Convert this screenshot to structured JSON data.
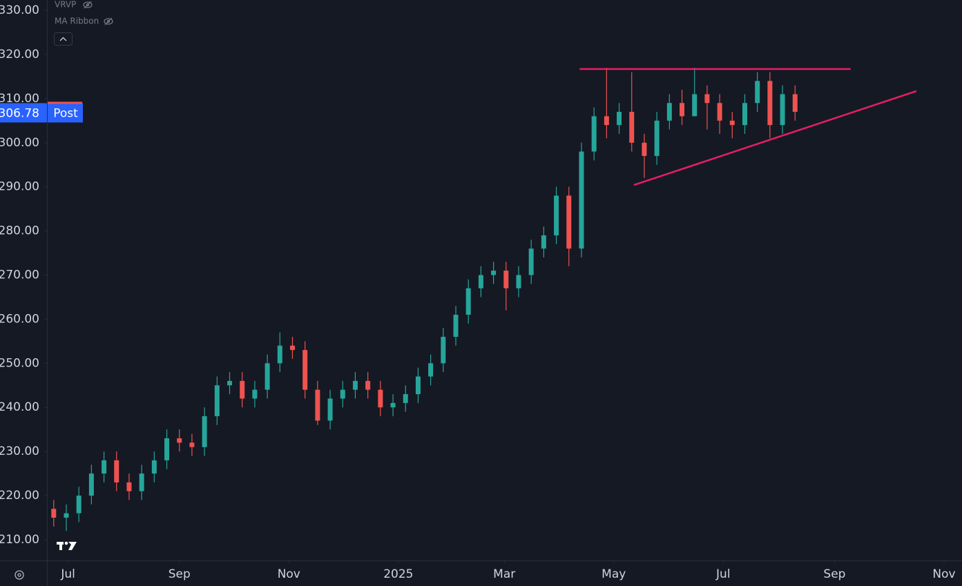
{
  "chart_data": {
    "type": "candlestick",
    "indicators": [
      "VRVP",
      "MA Ribbon"
    ],
    "x": [
      -8,
      -1,
      6,
      13,
      20,
      27,
      34,
      41,
      48,
      55,
      62,
      69,
      76,
      83,
      90,
      97,
      104,
      111,
      118,
      125,
      132,
      139,
      146,
      153,
      160,
      167,
      174,
      181,
      188,
      195,
      202,
      209,
      216,
      223,
      230,
      237,
      244,
      251,
      258,
      265,
      272,
      279,
      286,
      293,
      300,
      307,
      314,
      321,
      328,
      335,
      342,
      349,
      356,
      363,
      370,
      377,
      384,
      391,
      398,
      405
    ],
    "open": [
      217,
      215,
      216,
      220,
      225,
      228,
      223,
      221,
      225,
      228,
      233,
      232,
      231,
      238,
      245,
      246,
      242,
      244,
      250,
      254,
      253,
      244,
      237,
      242,
      244,
      246,
      244,
      240,
      241,
      243,
      247,
      250,
      256,
      261,
      267,
      270,
      271,
      267,
      270,
      276,
      279,
      288,
      276,
      298,
      306,
      304,
      307,
      300,
      297,
      305,
      309,
      306,
      311,
      309,
      305,
      304,
      309,
      314,
      304,
      311
    ],
    "high": [
      219,
      218,
      222,
      227,
      230,
      230,
      225,
      227,
      230,
      235,
      235,
      234,
      240,
      247,
      248,
      248,
      246,
      252,
      257,
      256,
      255,
      246,
      244,
      246,
      248,
      248,
      246,
      243,
      245,
      249,
      252,
      258,
      263,
      269,
      272,
      273,
      273,
      272,
      278,
      281,
      290,
      290,
      300,
      308,
      317,
      309,
      316,
      302,
      307,
      311,
      312,
      317,
      313,
      311,
      307,
      311,
      316,
      316,
      313,
      313
    ],
    "low": [
      213,
      212,
      214,
      218,
      223,
      221,
      219,
      219,
      223,
      226,
      230,
      229,
      229,
      236,
      243,
      240,
      240,
      242,
      248,
      251,
      242,
      236,
      235,
      240,
      242,
      242,
      238,
      238,
      239,
      241,
      245,
      248,
      254,
      259,
      265,
      268,
      262,
      265,
      268,
      274,
      277,
      272,
      274,
      296,
      301,
      302,
      298,
      292,
      295,
      303,
      304,
      307,
      303,
      302,
      301,
      302,
      307,
      301,
      302,
      305
    ],
    "close": [
      215,
      216,
      220,
      225,
      228,
      223,
      221,
      225,
      228,
      233,
      232,
      231,
      238,
      245,
      246,
      242,
      244,
      250,
      254,
      253,
      244,
      237,
      242,
      244,
      246,
      244,
      240,
      241,
      243,
      247,
      250,
      256,
      261,
      267,
      270,
      271,
      267,
      270,
      276,
      279,
      288,
      276,
      298,
      306,
      304,
      307,
      300,
      297,
      305,
      309,
      306,
      311,
      309,
      305,
      304,
      309,
      314,
      304,
      311,
      307
    ],
    "up_color": "#26a69a",
    "down_color": "#ef5350",
    "xlim": [
      -11,
      498
    ],
    "xticks": [
      {
        "value": 0,
        "label": "Jul"
      },
      {
        "value": 62,
        "label": "Sep"
      },
      {
        "value": 123,
        "label": "Nov"
      },
      {
        "value": 184,
        "label": "2025"
      },
      {
        "value": 243,
        "label": "Mar"
      },
      {
        "value": 304,
        "label": "May"
      },
      {
        "value": 365,
        "label": "Jul"
      },
      {
        "value": 427,
        "label": "Sep"
      },
      {
        "value": 488,
        "label": "Nov"
      }
    ],
    "ylim": [
      205.3,
      332.35
    ],
    "yticks": [
      {
        "value": 210,
        "label": "210.00"
      },
      {
        "value": 220,
        "label": "220.00"
      },
      {
        "value": 230,
        "label": "230.00"
      },
      {
        "value": 240,
        "label": "240.00"
      },
      {
        "value": 250,
        "label": "250.00"
      },
      {
        "value": 260,
        "label": "260.00"
      },
      {
        "value": 270,
        "label": "270.00"
      },
      {
        "value": 280,
        "label": "280.00"
      },
      {
        "value": 290,
        "label": "290.00"
      },
      {
        "value": 300,
        "label": "300.00"
      },
      {
        "value": 310,
        "label": "310.00"
      },
      {
        "value": 320,
        "label": "320.00"
      },
      {
        "value": 330,
        "label": "330.00"
      }
    ],
    "trendlines": [
      {
        "x": [
          285,
          436
        ],
        "y": [
          316.7,
          316.7
        ]
      },
      {
        "x": [
          315.2,
          472.6
        ],
        "y": [
          290.4,
          311.7
        ]
      }
    ],
    "trendline_color": "#e91e63",
    "last_price": {
      "value": 306.78,
      "label": "Post"
    },
    "last_price_color": "#2962ff"
  }
}
